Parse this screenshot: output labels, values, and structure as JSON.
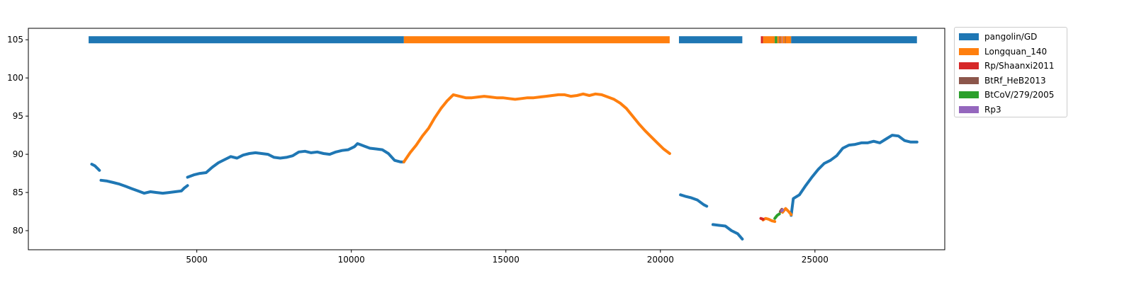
{
  "chart_data": {
    "type": "scatter",
    "xlim": [
      -450,
      29200
    ],
    "ylim": [
      77.5,
      106.5
    ],
    "xticks": [
      5000,
      10000,
      15000,
      20000,
      25000
    ],
    "yticks": [
      80,
      85,
      90,
      95,
      100,
      105
    ],
    "xtick_labels": [
      "5000",
      "10000",
      "15000",
      "20000",
      "25000"
    ],
    "ytick_labels": [
      "80",
      "85",
      "90",
      "95",
      "100",
      "105"
    ],
    "grid": false,
    "legend_position": "outside-right",
    "colors": {
      "pangolin/GD": "#1f77b4",
      "Longquan_140": "#ff7f0e",
      "Rp/Shaanxi2011": "#d62728",
      "BtRf_HeB2013": "#8c564b",
      "BtCoV/279/2005": "#2ca02c",
      "Rp3": "#9467bd"
    },
    "legend": [
      {
        "label": "pangolin/GD",
        "color": "#1f77b4"
      },
      {
        "label": "Longquan_140",
        "color": "#ff7f0e"
      },
      {
        "label": "Rp/Shaanxi2011",
        "color": "#d62728"
      },
      {
        "label": "BtRf_HeB2013",
        "color": "#8c564b"
      },
      {
        "label": "BtCoV/279/2005",
        "color": "#2ca02c"
      },
      {
        "label": "Rp3",
        "color": "#9467bd"
      }
    ],
    "top_bar_y": 105,
    "top_bar_segments": [
      {
        "series": "pangolin/GD",
        "x_start": 1500,
        "x_end": 11700
      },
      {
        "series": "Longquan_140",
        "x_start": 11700,
        "x_end": 20300
      },
      {
        "series": "pangolin/GD",
        "x_start": 20600,
        "x_end": 22650
      },
      {
        "series": "Rp/Shaanxi2011",
        "x_start": 23250,
        "x_end": 23320
      },
      {
        "series": "Longquan_140",
        "x_start": 23320,
        "x_end": 23700
      },
      {
        "series": "BtCoV/279/2005",
        "x_start": 23700,
        "x_end": 23780
      },
      {
        "series": "Longquan_140",
        "x_start": 23780,
        "x_end": 23850
      },
      {
        "series": "BtRf_HeB2013",
        "x_start": 23850,
        "x_end": 23880
      },
      {
        "series": "Longquan_140",
        "x_start": 23880,
        "x_end": 23930
      },
      {
        "series": "Rp3",
        "x_start": 23930,
        "x_end": 23950
      },
      {
        "series": "Longquan_140",
        "x_start": 23950,
        "x_end": 24030
      },
      {
        "series": "BtRf_HeB2013",
        "x_start": 24030,
        "x_end": 24050
      },
      {
        "series": "Longquan_140",
        "x_start": 24050,
        "x_end": 24230
      },
      {
        "series": "pangolin/GD",
        "x_start": 24230,
        "x_end": 28300
      }
    ],
    "series": [
      {
        "name": "pangolin/GD",
        "segments": [
          [
            [
              1600,
              88.7
            ],
            [
              1700,
              88.5
            ],
            [
              1800,
              88.1
            ],
            [
              1850,
              87.9
            ]
          ],
          [
            [
              1900,
              86.6
            ],
            [
              2100,
              86.5
            ],
            [
              2300,
              86.3
            ],
            [
              2500,
              86.1
            ],
            [
              2700,
              85.8
            ],
            [
              2900,
              85.5
            ],
            [
              3100,
              85.2
            ],
            [
              3300,
              84.9
            ],
            [
              3500,
              85.1
            ],
            [
              3700,
              85.0
            ],
            [
              3900,
              84.9
            ],
            [
              4100,
              85.0
            ],
            [
              4300,
              85.1
            ],
            [
              4500,
              85.2
            ],
            [
              4600,
              85.6
            ],
            [
              4700,
              85.9
            ]
          ],
          [
            [
              4700,
              87.0
            ],
            [
              4900,
              87.3
            ],
            [
              5100,
              87.5
            ],
            [
              5300,
              87.6
            ],
            [
              5500,
              88.3
            ],
            [
              5700,
              88.9
            ],
            [
              5900,
              89.3
            ],
            [
              6100,
              89.7
            ],
            [
              6300,
              89.5
            ],
            [
              6500,
              89.9
            ],
            [
              6700,
              90.1
            ],
            [
              6900,
              90.2
            ],
            [
              7100,
              90.1
            ],
            [
              7300,
              90.0
            ],
            [
              7500,
              89.6
            ],
            [
              7700,
              89.5
            ],
            [
              7900,
              89.6
            ],
            [
              8100,
              89.8
            ],
            [
              8300,
              90.3
            ],
            [
              8500,
              90.4
            ],
            [
              8700,
              90.2
            ],
            [
              8900,
              90.3
            ],
            [
              9100,
              90.1
            ],
            [
              9300,
              90.0
            ],
            [
              9500,
              90.3
            ],
            [
              9700,
              90.5
            ],
            [
              9900,
              90.6
            ],
            [
              10100,
              91.0
            ],
            [
              10200,
              91.4
            ],
            [
              10400,
              91.1
            ],
            [
              10600,
              90.8
            ],
            [
              10800,
              90.7
            ],
            [
              11000,
              90.6
            ],
            [
              11200,
              90.1
            ],
            [
              11400,
              89.2
            ],
            [
              11600,
              89.0
            ],
            [
              11700,
              89.0
            ]
          ]
        ]
      },
      {
        "name": "Longquan_140",
        "segments": [
          [
            [
              11700,
              89.0
            ],
            [
              11900,
              90.2
            ],
            [
              12100,
              91.2
            ],
            [
              12300,
              92.4
            ],
            [
              12500,
              93.4
            ],
            [
              12700,
              94.8
            ],
            [
              12900,
              96.0
            ],
            [
              13100,
              97.0
            ],
            [
              13300,
              97.8
            ],
            [
              13500,
              97.6
            ],
            [
              13700,
              97.4
            ],
            [
              13900,
              97.4
            ],
            [
              14100,
              97.5
            ],
            [
              14300,
              97.6
            ],
            [
              14500,
              97.5
            ],
            [
              14700,
              97.4
            ],
            [
              14900,
              97.4
            ],
            [
              15100,
              97.3
            ],
            [
              15300,
              97.2
            ],
            [
              15500,
              97.3
            ],
            [
              15700,
              97.4
            ],
            [
              15900,
              97.4
            ],
            [
              16100,
              97.5
            ],
            [
              16300,
              97.6
            ],
            [
              16500,
              97.7
            ],
            [
              16700,
              97.8
            ],
            [
              16900,
              97.8
            ],
            [
              17100,
              97.6
            ],
            [
              17300,
              97.7
            ],
            [
              17500,
              97.9
            ],
            [
              17700,
              97.7
            ],
            [
              17900,
              97.9
            ],
            [
              18100,
              97.8
            ],
            [
              18300,
              97.5
            ],
            [
              18500,
              97.2
            ],
            [
              18700,
              96.7
            ],
            [
              18900,
              96.0
            ],
            [
              19100,
              95.0
            ],
            [
              19300,
              94.0
            ],
            [
              19500,
              93.1
            ],
            [
              19700,
              92.3
            ],
            [
              19900,
              91.5
            ],
            [
              20100,
              90.7
            ],
            [
              20300,
              90.1
            ]
          ]
        ]
      },
      {
        "name": "pangolin/GD",
        "segments": [
          [
            [
              20650,
              84.7
            ],
            [
              20800,
              84.5
            ],
            [
              21000,
              84.3
            ],
            [
              21200,
              84.0
            ],
            [
              21400,
              83.4
            ],
            [
              21500,
              83.2
            ]
          ],
          [
            [
              21700,
              80.8
            ],
            [
              21900,
              80.7
            ],
            [
              22100,
              80.6
            ],
            [
              22300,
              80.0
            ],
            [
              22500,
              79.6
            ],
            [
              22650,
              78.9
            ]
          ],
          [
            [
              24230,
              82.0
            ],
            [
              24300,
              84.2
            ],
            [
              24500,
              84.7
            ],
            [
              24700,
              85.9
            ],
            [
              24900,
              87.0
            ],
            [
              25100,
              88.0
            ],
            [
              25300,
              88.8
            ],
            [
              25500,
              89.2
            ],
            [
              25700,
              89.8
            ],
            [
              25900,
              90.8
            ],
            [
              26100,
              91.2
            ],
            [
              26300,
              91.3
            ],
            [
              26500,
              91.5
            ],
            [
              26700,
              91.5
            ],
            [
              26900,
              91.7
            ],
            [
              27100,
              91.5
            ],
            [
              27300,
              92.0
            ],
            [
              27500,
              92.5
            ],
            [
              27700,
              92.4
            ],
            [
              27900,
              91.8
            ],
            [
              28100,
              91.6
            ],
            [
              28300,
              91.6
            ]
          ]
        ]
      },
      {
        "name": "Longquan_140",
        "segments": [
          [
            [
              23320,
              81.4
            ],
            [
              23400,
              81.6
            ],
            [
              23500,
              81.5
            ],
            [
              23600,
              81.3
            ],
            [
              23700,
              81.2
            ]
          ],
          [
            [
              23950,
              82.4
            ],
            [
              24050,
              82.9
            ],
            [
              24150,
              82.5
            ],
            [
              24230,
              82.1
            ]
          ]
        ]
      },
      {
        "name": "Rp/Shaanxi2011",
        "segments": [
          [
            [
              23250,
              81.6
            ],
            [
              23320,
              81.5
            ]
          ]
        ]
      },
      {
        "name": "BtCoV/279/2005",
        "segments": [
          [
            [
              23700,
              81.6
            ],
            [
              23780,
              82.0
            ],
            [
              23850,
              82.2
            ]
          ]
        ]
      },
      {
        "name": "BtRf_HeB2013",
        "segments": [
          [
            [
              23880,
              82.5
            ],
            [
              23930,
              82.8
            ]
          ]
        ]
      },
      {
        "name": "Rp3",
        "segments": [
          [
            [
              23930,
              82.6
            ],
            [
              23950,
              82.7
            ]
          ]
        ]
      }
    ]
  }
}
